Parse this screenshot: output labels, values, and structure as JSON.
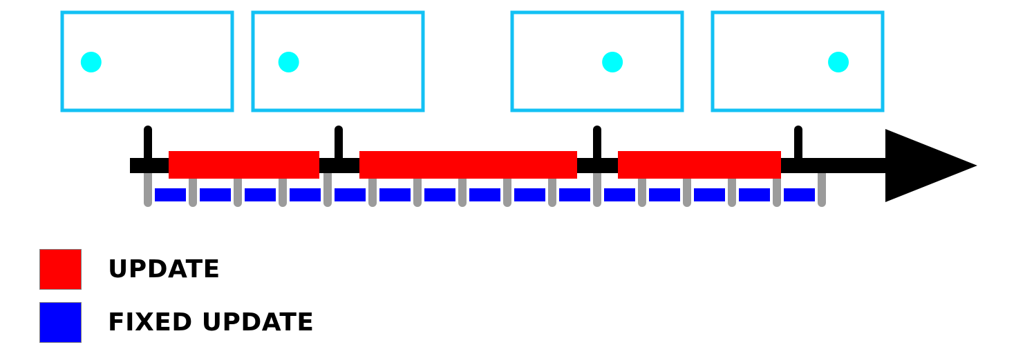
{
  "colors": {
    "frame_border": "#13c1f4",
    "frame_dot": "#00ffff",
    "timeline": "#000000",
    "frame_tick": "#000000",
    "update": "#ff0000",
    "fixed_update": "#0000ff",
    "fixed_tick": "#9b9b9b"
  },
  "frames": [
    {
      "dot_offset": 0.17
    },
    {
      "dot_offset": 0.21
    },
    {
      "dot_offset": 0.59
    },
    {
      "dot_offset": 0.74
    }
  ],
  "legend": [
    {
      "label": "UPDATE",
      "color": "#ff0000"
    },
    {
      "label": "FIXED UPDATE",
      "color": "#0000ff"
    }
  ]
}
